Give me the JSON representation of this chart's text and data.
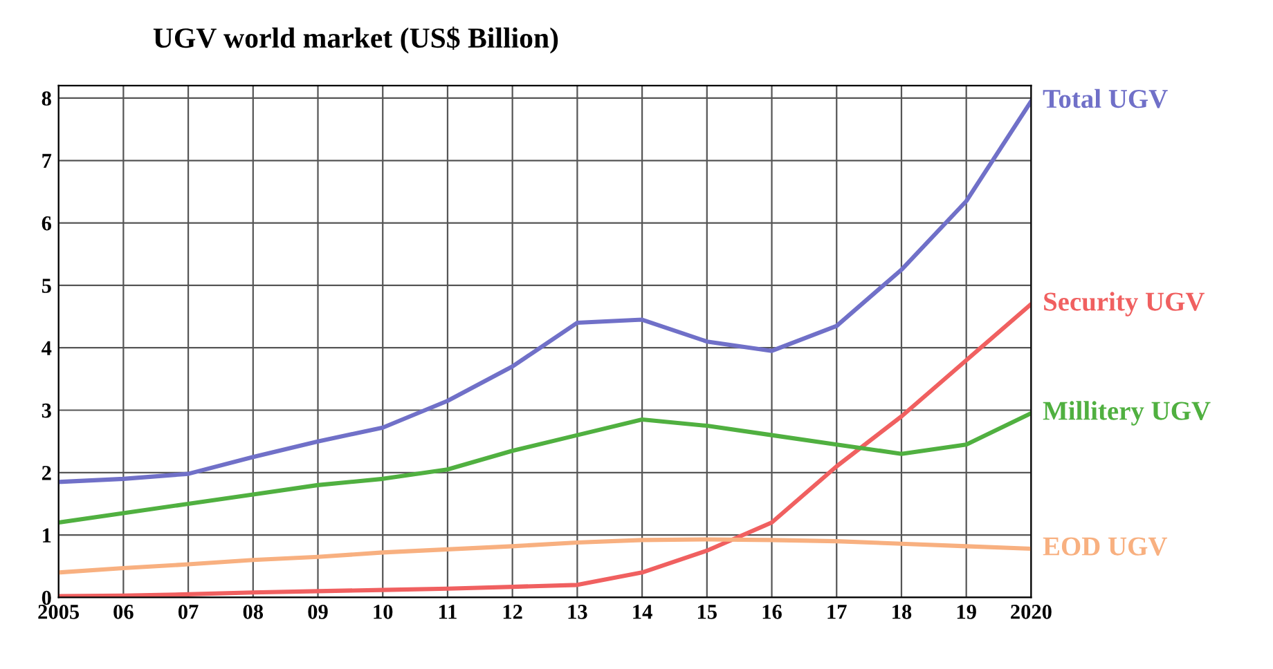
{
  "chart_data": {
    "type": "line",
    "title": "UGV world market (US$ Billion)",
    "categories": [
      "2005",
      "06",
      "07",
      "08",
      "09",
      "10",
      "11",
      "12",
      "13",
      "14",
      "15",
      "16",
      "17",
      "18",
      "19",
      "2020"
    ],
    "series": [
      {
        "name": "Total UGV",
        "color": "#7070c8",
        "values": [
          1.85,
          1.9,
          1.98,
          2.25,
          2.5,
          2.72,
          3.15,
          3.7,
          4.4,
          4.45,
          4.1,
          3.95,
          4.35,
          5.25,
          6.35,
          7.95
        ]
      },
      {
        "name": "Security UGV",
        "color": "#f06060",
        "values": [
          0.02,
          0.03,
          0.05,
          0.08,
          0.1,
          0.12,
          0.14,
          0.17,
          0.2,
          0.4,
          0.75,
          1.2,
          2.1,
          2.9,
          3.8,
          4.7
        ]
      },
      {
        "name": "Millitery UGV",
        "color": "#50b040",
        "values": [
          1.2,
          1.35,
          1.5,
          1.65,
          1.8,
          1.9,
          2.05,
          2.35,
          2.6,
          2.85,
          2.75,
          2.6,
          2.45,
          2.3,
          2.45,
          2.95
        ]
      },
      {
        "name": "EOD UGV",
        "color": "#f8b080",
        "values": [
          0.4,
          0.47,
          0.53,
          0.6,
          0.65,
          0.72,
          0.77,
          0.82,
          0.88,
          0.92,
          0.93,
          0.92,
          0.9,
          0.86,
          0.82,
          0.78
        ]
      }
    ],
    "ylim": [
      0,
      8.2
    ],
    "yticks": [
      0,
      1,
      2,
      3,
      4,
      5,
      6,
      7,
      8
    ],
    "grid": true,
    "legend": false,
    "marker": "none",
    "line_style": "solid"
  }
}
